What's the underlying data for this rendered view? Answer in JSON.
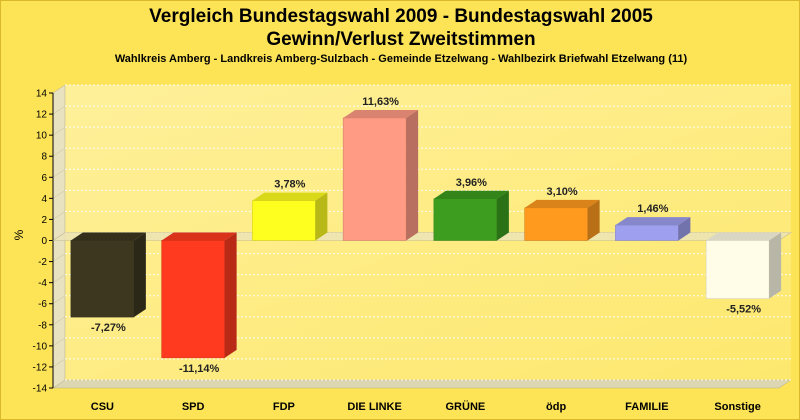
{
  "chart_data": {
    "type": "bar",
    "title_line1": "Vergleich Bundestagswahl 2009 - Bundestagswahl 2005",
    "title_line2": "Gewinn/Verlust Zweitstimmen",
    "subtitle": "Wahlkreis Amberg - Landkreis Amberg-Sulzbach - Gemeinde Etzelwang - Wahlbezirk Briefwahl Etzelwang (11)",
    "ylabel": "%",
    "ylim": [
      -14,
      14
    ],
    "yticks": [
      "14",
      "12",
      "10",
      "8",
      "6",
      "4",
      "2",
      "0",
      "-2",
      "-4",
      "-6",
      "-8",
      "-10",
      "-12",
      "-14"
    ],
    "categories": [
      "CSU",
      "SPD",
      "FDP",
      "DIE LINKE",
      "GRÜNE",
      "ödp",
      "FAMILIE",
      "Sonstige"
    ],
    "values": [
      -7.27,
      -11.14,
      3.78,
      11.63,
      3.96,
      3.1,
      1.46,
      -5.52
    ],
    "value_labels": [
      "-7,27%",
      "-11,14%",
      "3,78%",
      "11,63%",
      "3,96%",
      "3,10%",
      "1,46%",
      "-5,52%"
    ],
    "colors": [
      "#3d3720",
      "#ff3a1f",
      "#ffff1f",
      "#ff9a84",
      "#3c9d1e",
      "#ff9a1e",
      "#9f9ff0",
      "#fffde7"
    ],
    "grid": true,
    "legend": "none"
  }
}
